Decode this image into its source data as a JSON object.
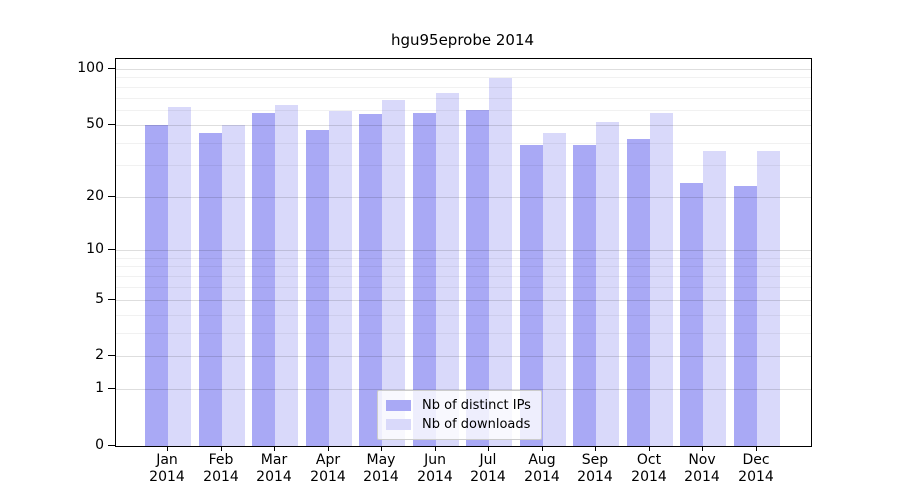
{
  "chart_data": {
    "type": "bar",
    "title": "hgu95eprobe 2014",
    "categories": [
      "Jan",
      "Feb",
      "Mar",
      "Apr",
      "May",
      "Jun",
      "Jul",
      "Aug",
      "Sep",
      "Oct",
      "Nov",
      "Dec"
    ],
    "x_tick_year": "2014",
    "series": [
      {
        "name": "Nb of distinct IPs",
        "key": "distinct-ips",
        "color": "#a9a9f5",
        "values": [
          50,
          45,
          58,
          47,
          57,
          58,
          60,
          39,
          39,
          42,
          24,
          23
        ]
      },
      {
        "name": "Nb of downloads",
        "key": "downloads",
        "color": "#d9d9fa",
        "values": [
          62,
          50,
          64,
          59,
          68,
          74,
          89,
          45,
          52,
          58,
          36,
          36
        ]
      }
    ],
    "xlabel": "",
    "ylabel": "",
    "y_axis": {
      "scale": "log1p",
      "ticks": [
        0,
        1,
        2,
        5,
        10,
        20,
        50,
        100
      ],
      "minor_gridlines": [
        3,
        4,
        6,
        7,
        8,
        9,
        30,
        40,
        60,
        70,
        80,
        90
      ],
      "ylim": [
        0,
        113
      ]
    },
    "legend": {
      "position": "lower center"
    },
    "colors": {
      "spine": "#000000",
      "tick_text": "#000000",
      "grid_major": "rgba(0,0,0,0.13)",
      "grid_minor": "rgba(0,0,0,0.055)",
      "legend_border": "#cccccc",
      "legend_background": "rgba(255,255,255,0.8)"
    },
    "grid": "on"
  }
}
